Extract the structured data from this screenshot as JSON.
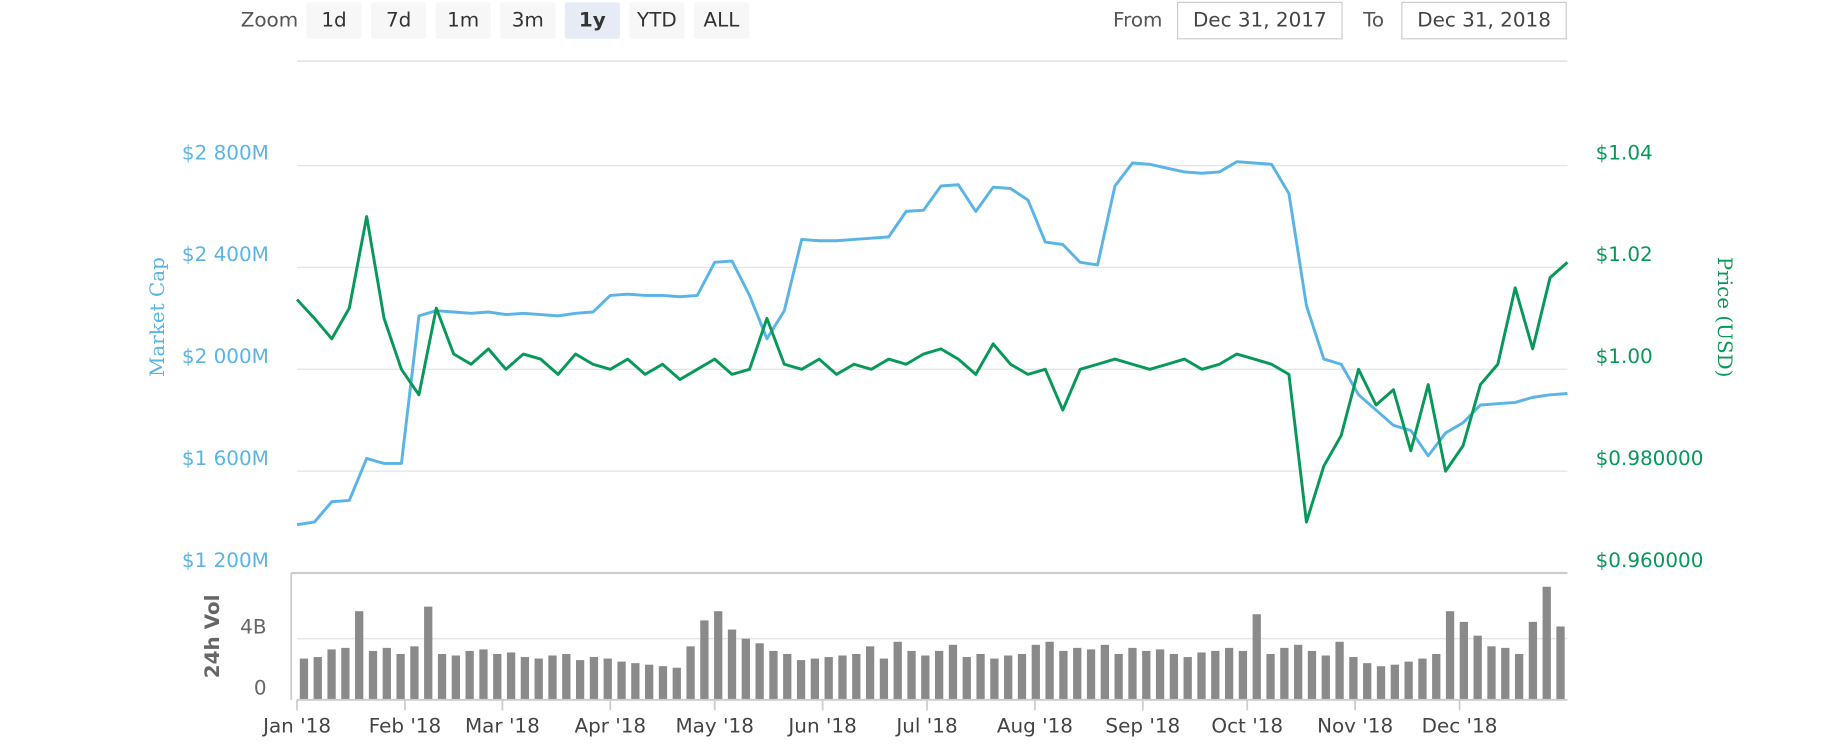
{
  "toolbar": {
    "zoom_label": "Zoom",
    "zoom_buttons": [
      "1d",
      "7d",
      "1m",
      "3m",
      "1y",
      "YTD",
      "ALL"
    ],
    "active_button": "1y",
    "from_label": "From",
    "from_value": "Dec 31, 2017",
    "to_label": "To",
    "to_value": "Dec 31, 2018"
  },
  "chart_data": [
    {
      "type": "line",
      "ylim": [
        1200,
        2800
      ],
      "yticks": [
        {
          "value": 2800,
          "label": "$2 800M"
        },
        {
          "value": 2400,
          "label": "$2 400M"
        },
        {
          "value": 2000,
          "label": "$2 000M"
        },
        {
          "value": 1600,
          "label": "$1 600M"
        },
        {
          "value": 1200,
          "label": "$1 200M"
        }
      ],
      "y2lim": [
        0.96,
        1.04
      ],
      "y2ticks": [
        {
          "value": 1.04,
          "label": "$1.04"
        },
        {
          "value": 1.02,
          "label": "$1.02"
        },
        {
          "value": 1.0,
          "label": "$1.00"
        },
        {
          "value": 0.98,
          "label": "$0.980000"
        },
        {
          "value": 0.96,
          "label": "$0.960000"
        }
      ],
      "grid": true,
      "series": [
        {
          "name": "Market Cap",
          "color": "#5ab4e5",
          "values": [
            1390,
            1400,
            1480,
            1485,
            1650,
            1630,
            1630,
            2210,
            2230,
            2225,
            2220,
            2225,
            2215,
            2220,
            2215,
            2210,
            2220,
            2225,
            2290,
            2295,
            2290,
            2290,
            2285,
            2290,
            2420,
            2425,
            2290,
            2120,
            2230,
            2510,
            2505,
            2505,
            2510,
            2515,
            2520,
            2620,
            2625,
            2720,
            2725,
            2620,
            2715,
            2710,
            2665,
            2500,
            2490,
            2420,
            2410,
            2720,
            2810,
            2805,
            2790,
            2775,
            2770,
            2775,
            2815,
            2810,
            2805,
            2690,
            2250,
            2040,
            2020,
            1900,
            1840,
            1780,
            1760,
            1660,
            1750,
            1790,
            1860,
            1865,
            1870,
            1890,
            1900,
            1905
          ]
        },
        {
          "name": "Price (USD)",
          "color": "#08985a",
          "axis": "y2",
          "values": [
            1.0137,
            1.01,
            1.006,
            1.012,
            1.03,
            1.01,
            1.0,
            0.995,
            1.012,
            1.003,
            1.001,
            1.004,
            1.0,
            1.003,
            1.002,
            0.999,
            1.003,
            1.001,
            1.0,
            1.002,
            0.999,
            1.001,
            0.998,
            1.0,
            1.002,
            0.999,
            1.0,
            1.01,
            1.001,
            1.0,
            1.002,
            0.999,
            1.001,
            1.0,
            1.002,
            1.001,
            1.003,
            1.004,
            1.002,
            0.999,
            1.005,
            1.001,
            0.999,
            1.0,
            0.992,
            1.0,
            1.001,
            1.002,
            1.001,
            1.0,
            1.001,
            1.002,
            1.0,
            1.001,
            1.003,
            1.002,
            1.001,
            0.999,
            0.97,
            0.981,
            0.987,
            1.0,
            0.993,
            0.996,
            0.984,
            0.997,
            0.98,
            0.985,
            0.997,
            1.001,
            1.016,
            1.004,
            1.018,
            1.021
          ]
        }
      ]
    },
    {
      "type": "bar",
      "ylim": [
        0,
        8.3
      ],
      "yticks": [
        0,
        {
          "value": 4,
          "label": "4B"
        }
      ],
      "x_labels": [
        "Jan '18",
        "Feb '18",
        "Mar '18",
        "Apr '18",
        "May '18",
        "Jun '18",
        "Jul '18",
        "Aug '18",
        "Sep '18",
        "Oct '18",
        "Nov '18",
        "Dec '18"
      ],
      "grid": true,
      "series": [
        {
          "name": "24h Vol",
          "color": "#8a8a8a",
          "values": [
            2.7,
            2.8,
            3.3,
            3.4,
            5.8,
            3.2,
            3.4,
            3.0,
            3.5,
            6.1,
            3.0,
            2.9,
            3.2,
            3.3,
            3.0,
            3.1,
            2.8,
            2.7,
            2.9,
            3.0,
            2.6,
            2.8,
            2.7,
            2.5,
            2.4,
            2.3,
            2.2,
            2.1,
            3.5,
            5.2,
            5.8,
            4.6,
            4.0,
            3.7,
            3.2,
            3.0,
            2.6,
            2.7,
            2.8,
            2.9,
            3.0,
            3.5,
            2.7,
            3.8,
            3.2,
            2.9,
            3.2,
            3.6,
            2.8,
            3.0,
            2.7,
            2.9,
            3.0,
            3.6,
            3.8,
            3.2,
            3.4,
            3.3,
            3.6,
            3.0,
            3.4,
            3.2,
            3.3,
            3.0,
            2.8,
            3.1,
            3.2,
            3.4,
            3.2,
            5.6,
            3.0,
            3.4,
            3.6,
            3.2,
            2.9,
            3.8,
            2.8,
            2.4,
            2.2,
            2.3,
            2.5,
            2.7,
            3.0,
            5.8,
            5.1,
            4.2,
            3.5,
            3.4,
            3.0,
            5.1,
            7.4,
            4.8
          ]
        }
      ]
    }
  ]
}
